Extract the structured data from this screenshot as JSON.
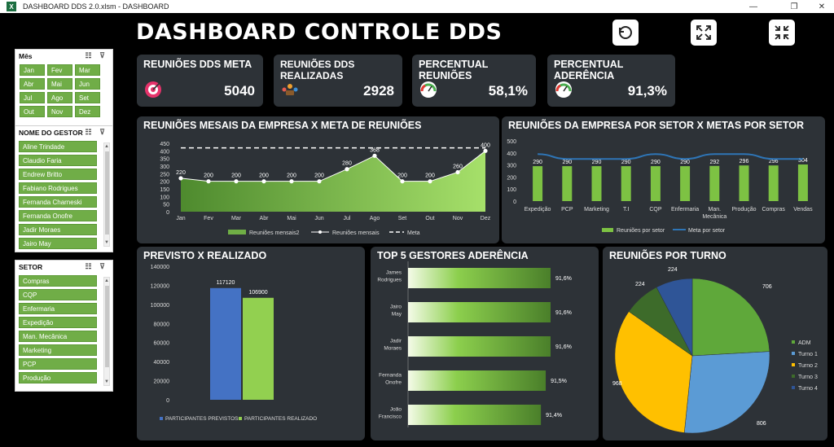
{
  "window": {
    "title": "DASHBOARD DDS 2.0.xlsm - DASHBOARD",
    "app_icon": "X",
    "minimize": "—",
    "restore": "❐",
    "close": "✕"
  },
  "dashboard_title": "DASHBOARD CONTROLE DDS",
  "slicers": {
    "mes": {
      "label": "Mês",
      "items": [
        "Jan",
        "Fev",
        "Mar",
        "Abr",
        "Mai",
        "Jun",
        "Jul",
        "Ago",
        "Set",
        "Out",
        "Nov",
        "Dez"
      ]
    },
    "gestor": {
      "label": "NOME DO GESTOR",
      "items": [
        "Aline Trindade",
        "Claudio Faria",
        "Endrew Britto",
        "Fabiano Rodrigues",
        "Fernanda Charneski",
        "Fernanda Onofre",
        "Jadir Moraes",
        "Jairo May"
      ]
    },
    "setor": {
      "label": "SETOR",
      "items": [
        "Compras",
        "CQP",
        "Enfermaria",
        "Expedição",
        "Man. Mecânica",
        "Marketing",
        "PCP",
        "Produção"
      ]
    }
  },
  "kpis": [
    {
      "label": "REUNIÕES DDS META",
      "value": "5040",
      "icon": "target-icon",
      "color": "#e6336b"
    },
    {
      "label": "REUNIÕES DDS REALIZADAS",
      "value": "2928",
      "icon": "meeting-icon",
      "color": "#f0a030"
    },
    {
      "label": "PERCENTUAL REUNIÕES",
      "value": "58,1%",
      "icon": "gauge-icon",
      "color": "#4caf50"
    },
    {
      "label": "PERCENTUAL ADERÊNCIA",
      "value": "91,3%",
      "icon": "gauge-icon",
      "color": "#4caf50"
    }
  ],
  "chart_data": [
    {
      "type": "area",
      "title": "REUNIÕES MESAIS DA EMPRESA X META DE REUNIÕES",
      "categories": [
        "Jan",
        "Fev",
        "Mar",
        "Abr",
        "Mai",
        "Jun",
        "Jul",
        "Ago",
        "Set",
        "Out",
        "Nov",
        "Dez"
      ],
      "series": [
        {
          "name": "Reuniões mensais2",
          "values": [
            220,
            200,
            200,
            200,
            200,
            200,
            280,
            368,
            200,
            200,
            260,
            400
          ]
        },
        {
          "name": "Reuniões mensais",
          "values": [
            220,
            200,
            200,
            200,
            200,
            200,
            280,
            368,
            200,
            200,
            260,
            400
          ]
        },
        {
          "name": "Meta",
          "values": [
            420,
            420,
            420,
            420,
            420,
            420,
            420,
            420,
            420,
            420,
            420,
            420
          ]
        }
      ],
      "data_labels": [
        "220",
        "200",
        "200",
        "200",
        "200",
        "200",
        "280",
        "368",
        "200",
        "200",
        "260",
        "400"
      ],
      "ylim": [
        0,
        450
      ],
      "yticks": [
        "0",
        "50",
        "100",
        "150",
        "200",
        "250",
        "300",
        "350",
        "400",
        "450"
      ],
      "legend": "bottom"
    },
    {
      "type": "bar",
      "title": "REUNIÕES DA EMPRESA POR SETOR X METAS POR SETOR",
      "categories": [
        "Expedição",
        "PCP",
        "Marketing",
        "T.I",
        "CQP",
        "Enfermaria",
        "Man. Mecânica",
        "Produção",
        "Compras",
        "Vendas"
      ],
      "series": [
        {
          "name": "Reuniões por setor",
          "values": [
            290,
            290,
            290,
            290,
            290,
            290,
            292,
            296,
            296,
            304
          ]
        },
        {
          "name": "Meta por setor",
          "values": [
            390,
            350,
            350,
            350,
            390,
            350,
            390,
            390,
            350,
            350
          ]
        }
      ],
      "data_labels": [
        "290",
        "290",
        "290",
        "290",
        "290",
        "290",
        "292",
        "296",
        "296",
        "304"
      ],
      "ylim": [
        0,
        500
      ],
      "yticks": [
        "0",
        "100",
        "200",
        "300",
        "400",
        "500"
      ],
      "legend": "bottom"
    },
    {
      "type": "bar",
      "title": "PREVISTO X REALIZADO",
      "categories": [
        "PARTICIPANTES PREVISTOS",
        "PARTICIPANTES REALIZADO"
      ],
      "values": [
        117120,
        106900
      ],
      "data_labels": [
        "117120",
        "106900"
      ],
      "colors": [
        "#4472c4",
        "#92d050"
      ],
      "ylim": [
        0,
        140000
      ],
      "yticks": [
        "0",
        "20000",
        "40000",
        "60000",
        "80000",
        "100000",
        "120000",
        "140000"
      ],
      "legend": "bottom"
    },
    {
      "type": "bar",
      "orientation": "horizontal",
      "title": "TOP 5 GESTORES ADERÊNCIA",
      "categories": [
        "James Rodrigues",
        "Jairo May",
        "Jadir Moraes",
        "Fernanda Onofre",
        "João Francisco"
      ],
      "values": [
        91.6,
        91.6,
        91.6,
        91.5,
        91.4
      ],
      "data_labels": [
        "91,6%",
        "91,6%",
        "91,6%",
        "91,5%",
        "91,4%"
      ]
    },
    {
      "type": "pie",
      "title": "REUNIÕES POR TURNO",
      "categories": [
        "ADM",
        "Turno 1",
        "Turno 2",
        "Turno 3",
        "Turno 4"
      ],
      "values": [
        706,
        806,
        968,
        224,
        224
      ],
      "data_labels": [
        "706",
        "806",
        "968",
        "224",
        "224"
      ],
      "colors": [
        "#5fa83a",
        "#5b9bd5",
        "#ffc000",
        "#3d6b2a",
        "#2f5597"
      ],
      "legend": "right"
    }
  ]
}
